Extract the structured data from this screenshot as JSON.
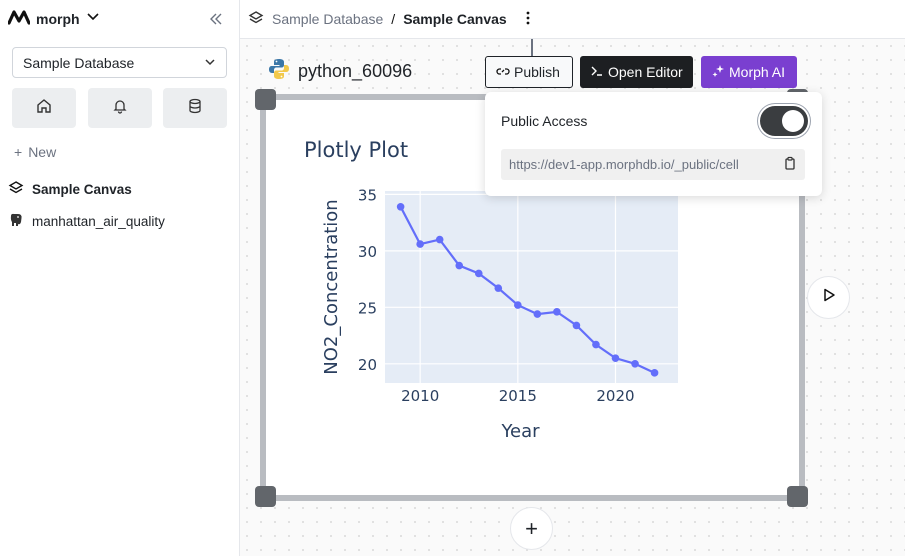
{
  "app": {
    "name": "morph"
  },
  "sidebar": {
    "database_select": "Sample Database",
    "new_label": "New",
    "items": [
      {
        "label": "Sample Canvas",
        "icon": "layers-icon",
        "active": true
      },
      {
        "label": "manhattan_air_quality",
        "icon": "postgres-elephant-icon",
        "active": false
      }
    ],
    "quick_actions": [
      "home-icon",
      "bell-icon",
      "database-icon"
    ]
  },
  "breadcrumb": {
    "database": "Sample Database",
    "separator": "/",
    "canvas": "Sample Canvas"
  },
  "cell": {
    "name": "python_60096",
    "language_icon": "python-icon"
  },
  "toolbar": {
    "publish": "Publish",
    "open_editor": "Open Editor",
    "morph_ai": "Morph AI"
  },
  "popover": {
    "public_access_label": "Public Access",
    "public_access_on": true,
    "url": "https://dev1-app.morphdb.io/_public/cell"
  },
  "colors": {
    "ai": "#7a3fd0",
    "editor": "#1d1f22",
    "line": "#636efa",
    "plot_bg": "#e5ecf6"
  },
  "chart_data": {
    "type": "line",
    "title": "Plotly Plot",
    "xlabel": "Year",
    "ylabel": "NO2_Concentration",
    "x": [
      2009,
      2010,
      2011,
      2012,
      2013,
      2014,
      2015,
      2016,
      2017,
      2018,
      2019,
      2020,
      2021,
      2022
    ],
    "series": [
      {
        "values": [
          33.9,
          30.6,
          31.0,
          28.7,
          28.0,
          26.7,
          25.2,
          24.4,
          24.6,
          23.4,
          21.7,
          20.5,
          20.0,
          19.2
        ]
      }
    ],
    "xticks": [
      2010,
      2015,
      2020
    ],
    "yticks": [
      20,
      25,
      30,
      35
    ],
    "xlim": [
      2008.2,
      2023.2
    ],
    "ylim": [
      18.3,
      35.3
    ],
    "grid": true
  }
}
